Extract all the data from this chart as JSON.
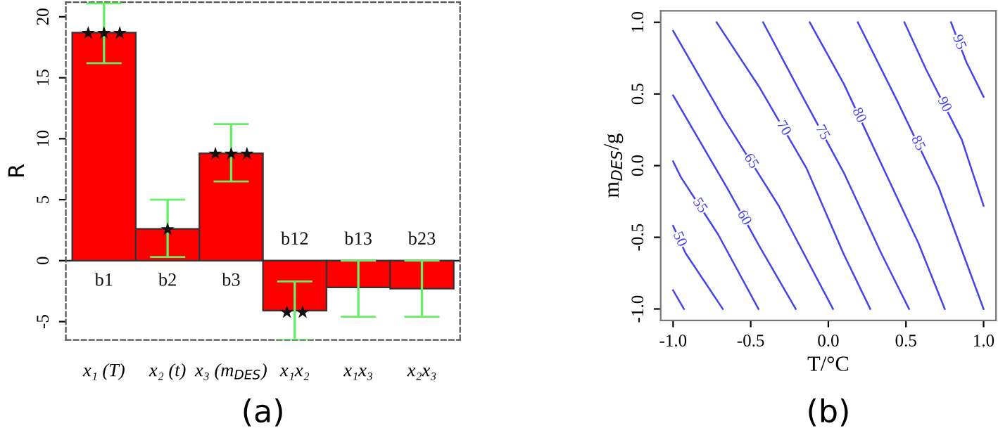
{
  "chart_data": [
    {
      "type": "bar",
      "title": "(a)",
      "ylabel": "R",
      "categories": [
        "x₁ (T)",
        "x₂ (t)",
        "x₃ (m$_{DES}$)",
        "x₁x₂",
        "x₁x₃",
        "x₂x₃"
      ],
      "values": [
        18.7,
        2.6,
        8.8,
        -4.1,
        -2.2,
        -2.3
      ],
      "errors": [
        [
          16.2,
          21.1
        ],
        [
          0.3,
          5.0
        ],
        [
          6.5,
          11.2
        ],
        [
          -6.5,
          -1.7
        ],
        [
          -4.6,
          0
        ],
        [
          -4.6,
          0
        ]
      ],
      "color": "#ff0000",
      "ylim": [
        -6.5,
        21.2
      ],
      "yticks": [
        -5,
        0,
        5,
        10,
        15,
        20
      ],
      "annotations": [
        "b1",
        "b2",
        "b3",
        "b12",
        "b13",
        "b23",
        {
          "text": "★★★",
          "x": "x₁ (T)",
          "y": 18.6
        },
        {
          "text": "★",
          "x": "x₂ (t)",
          "y": 2.5
        },
        {
          "text": "★★★",
          "x": "x₃ (m$_{DES}$)",
          "y": 8.7
        },
        {
          "text": "★★",
          "x": "x₁x₂",
          "y": -4.3
        }
      ]
    },
    {
      "type": "line",
      "title": "(b)",
      "xlabel": "T/°C",
      "ylabel": "m$_{DES}$/g",
      "xlim": [
        -1.08,
        1.08
      ],
      "ylim": [
        -1.08,
        1.08
      ],
      "xticks": [
        {
          "value": -1,
          "label": "-1.0"
        },
        {
          "value": -0.5,
          "label": "-0.5"
        },
        {
          "value": 0,
          "label": "0.0"
        },
        {
          "value": 0.5,
          "label": "0.5"
        },
        {
          "value": 1,
          "label": "1.0"
        }
      ],
      "yticks": [
        {
          "value": -1,
          "label": "-1.0"
        },
        {
          "value": -0.5,
          "label": "-0.5"
        },
        {
          "value": 0,
          "label": "0.0"
        },
        {
          "value": 0.5,
          "label": "0.5"
        },
        {
          "value": 1,
          "label": "1.0"
        }
      ],
      "series": [
        {
          "color": "#4444ee",
          "x": [
            -1.0,
            -0.93
          ],
          "values": [
            -0.87,
            -1.0
          ]
        },
        {
          "name": "50",
          "color": "#4444ee",
          "x": [
            -1.0,
            -0.92,
            -0.68
          ],
          "values": [
            -0.42,
            -0.61,
            -1.0
          ]
        },
        {
          "name": "55",
          "color": "#4444ee",
          "x": [
            -1.0,
            -0.95,
            -0.71,
            -0.45
          ],
          "values": [
            0.03,
            -0.08,
            -0.48,
            -1.0
          ]
        },
        {
          "name": "60",
          "color": "#4444ee",
          "x": [
            -1.0,
            -0.65,
            -0.44,
            -0.21
          ],
          "values": [
            0.49,
            -0.16,
            -0.57,
            -1.0
          ]
        },
        {
          "name": "65",
          "color": "#4444ee",
          "x": [
            -1.0,
            -0.68,
            -0.32,
            0.03
          ],
          "values": [
            0.94,
            0.34,
            -0.28,
            -1.0
          ]
        },
        {
          "name": "70",
          "color": "#4444ee",
          "x": [
            -0.72,
            -0.44,
            -0.14,
            0.1,
            0.27
          ],
          "values": [
            1.0,
            0.54,
            -0.02,
            -0.62,
            -1.0
          ]
        },
        {
          "name": "75",
          "color": "#4444ee",
          "x": [
            -0.42,
            -0.18,
            0.1,
            0.34,
            0.52
          ],
          "values": [
            1.0,
            0.51,
            -0.05,
            -0.61,
            -1.0
          ]
        },
        {
          "name": "80",
          "color": "#4444ee",
          "x": [
            -0.12,
            0.1,
            0.29,
            0.58,
            0.75
          ],
          "values": [
            1.0,
            0.57,
            0.13,
            -0.54,
            -1.0
          ]
        },
        {
          "name": "85",
          "color": "#4444ee",
          "x": [
            0.19,
            0.44,
            0.71,
            1.0
          ],
          "values": [
            1.0,
            0.46,
            -0.15,
            -1.0
          ]
        },
        {
          "name": "90",
          "color": "#4444ee",
          "x": [
            0.49,
            0.63,
            0.86,
            1.0
          ],
          "values": [
            1.0,
            0.67,
            0.18,
            -0.28
          ]
        },
        {
          "name": "95",
          "color": "#4444ee",
          "x": [
            0.79,
            0.89,
            1.0
          ],
          "values": [
            1.0,
            0.72,
            0.48
          ]
        }
      ]
    }
  ]
}
